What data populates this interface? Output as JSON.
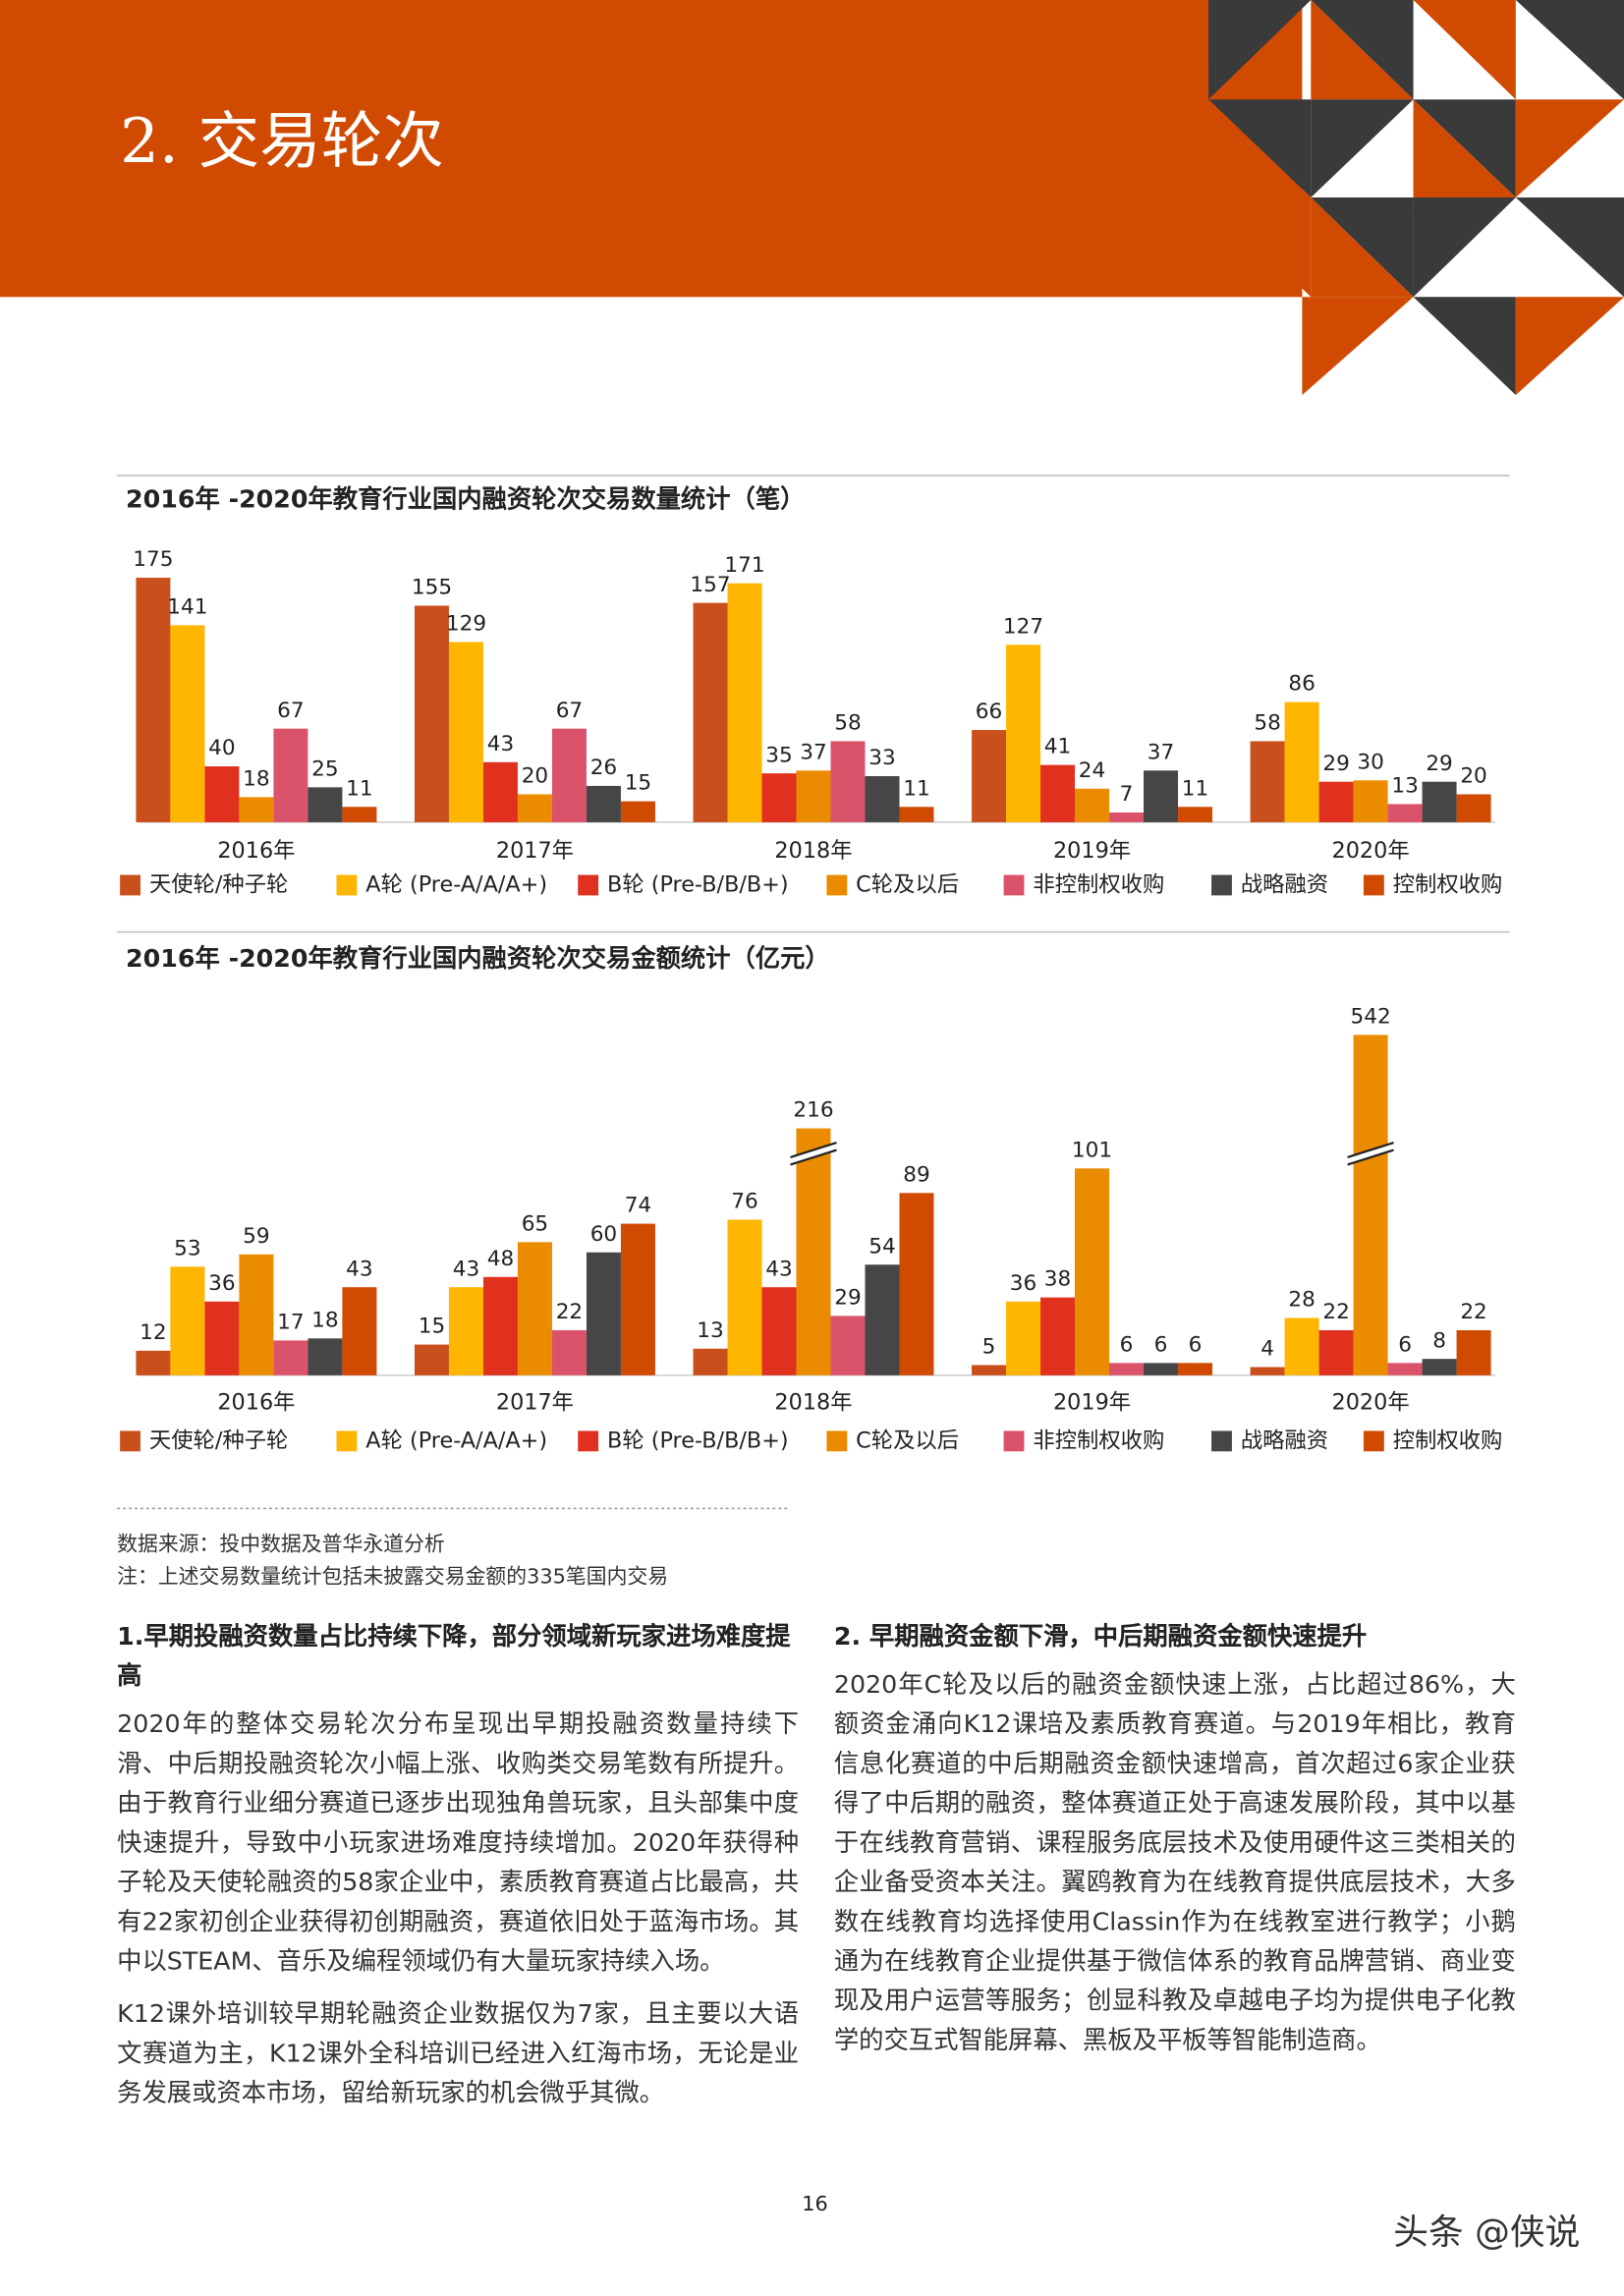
{
  "header": {
    "title": "2. 交易轮次"
  },
  "chart_data": [
    {
      "type": "bar",
      "title": "2016年 -2020年教育行业国内融资轮次交易数量统计（笔）",
      "categories": [
        "2016年",
        "2017年",
        "2018年",
        "2019年",
        "2020年"
      ],
      "series": [
        {
          "name": "天使轮/种子轮",
          "color": "#c9501c",
          "values": [
            175,
            155,
            157,
            66,
            58
          ]
        },
        {
          "name": "A轮 (Pre-A/A/A+)",
          "color": "#ffb600",
          "values": [
            141,
            129,
            171,
            127,
            86
          ]
        },
        {
          "name": "B轮 (Pre-B/B/B+)",
          "color": "#e0301e",
          "values": [
            40,
            43,
            35,
            41,
            29
          ]
        },
        {
          "name": "C轮及以后",
          "color": "#eb8c00",
          "values": [
            18,
            20,
            37,
            24,
            30
          ]
        },
        {
          "name": "非控制权收购",
          "color": "#db536a",
          "values": [
            67,
            67,
            58,
            7,
            13
          ]
        },
        {
          "name": "战略融资",
          "color": "#464646",
          "values": [
            25,
            26,
            33,
            37,
            29
          ]
        },
        {
          "name": "控制权收购",
          "color": "#d04a02",
          "values": [
            11,
            15,
            11,
            11,
            20
          ]
        }
      ]
    },
    {
      "type": "bar",
      "title": "2016年 -2020年教育行业国内融资轮次交易金额统计（亿元）",
      "categories": [
        "2016年",
        "2017年",
        "2018年",
        "2019年",
        "2020年"
      ],
      "series": [
        {
          "name": "天使轮/种子轮",
          "color": "#c9501c",
          "values": [
            12,
            15,
            13,
            5,
            4
          ]
        },
        {
          "name": "A轮 (Pre-A/A/A+)",
          "color": "#ffb600",
          "values": [
            53,
            43,
            76,
            36,
            28
          ]
        },
        {
          "name": "B轮 (Pre-B/B/B+)",
          "color": "#e0301e",
          "values": [
            36,
            48,
            43,
            38,
            22
          ]
        },
        {
          "name": "C轮及以后",
          "color": "#eb8c00",
          "values": [
            59,
            65,
            216,
            101,
            542
          ]
        },
        {
          "name": "非控制权收购",
          "color": "#db536a",
          "values": [
            17,
            22,
            29,
            6,
            6
          ]
        },
        {
          "name": "战略融资",
          "color": "#464646",
          "values": [
            18,
            60,
            54,
            6,
            8
          ]
        },
        {
          "name": "控制权收购",
          "color": "#d04a02",
          "values": [
            43,
            74,
            89,
            6,
            22
          ]
        }
      ]
    }
  ],
  "notes": [
    "数据来源：投中数据及普华永道分析",
    "注：上述交易数量统计包括未披露交易金额的335笔国内交易"
  ],
  "sections": [
    {
      "heading": "1.早期投融资数量占比持续下降，部分领域新玩家进场难度提高",
      "paragraphs": [
        "2020年的整体交易轮次分布呈现出早期投融资数量持续下滑、中后期投融资轮次小幅上涨、收购类交易笔数有所提升。由于教育行业细分赛道已逐步出现独角兽玩家，且头部集中度快速提升，导致中小玩家进场难度持续增加。2020年获得种子轮及天使轮融资的58家企业中，素质教育赛道占比最高，共有22家初创企业获得初创期融资，赛道依旧处于蓝海市场。其中以STEAM、音乐及编程领域仍有大量玩家持续入场。",
        "K12课外培训较早期轮融资企业数据仅为7家，且主要以大语文赛道为主，K12课外全科培训已经进入红海市场，无论是业务发展或资本市场，留给新玩家的机会微乎其微。"
      ]
    },
    {
      "heading": "2. 早期融资金额下滑，中后期融资金额快速提升",
      "paragraphs": [
        "2020年C轮及以后的融资金额快速上涨，占比超过86%，大额资金涌向K12课培及素质教育赛道。与2019年相比，教育信息化赛道的中后期融资金额快速增高，首次超过6家企业获得了中后期的融资，整体赛道正处于高速发展阶段，其中以基于在线教育营销、课程服务底层技术及使用硬件这三类相关的企业备受资本关注。翼鸥教育为在线教育提供底层技术，大多数在线教育均选择使用Classin作为在线教室进行教学；小鹅通为在线教育企业提供基于微信体系的教育品牌营销、商业变现及用户运营等服务；创显科教及卓越电子均为提供电子化教学的交互式智能屏幕、黑板及平板等智能制造商。"
      ]
    }
  ],
  "page_number": "16",
  "watermark": "头条 @侠说"
}
